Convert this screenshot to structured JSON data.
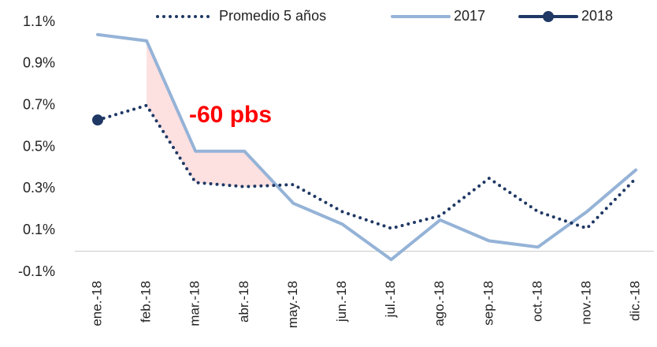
{
  "chart_data": {
    "type": "line",
    "categories": [
      "ene.-18",
      "feb.-18",
      "mar.-18",
      "abr.-18",
      "may.-18",
      "jun.-18",
      "jul.-18",
      "ago.-18",
      "sep.-18",
      "oct.-18",
      "nov.-18",
      "dic.-18"
    ],
    "series": [
      {
        "name": "Promedio 5 años",
        "color": "#1f3864",
        "style": "dotted",
        "values": [
          0.63,
          0.7,
          0.33,
          0.31,
          0.32,
          0.19,
          0.11,
          0.17,
          0.35,
          0.19,
          0.11,
          0.35
        ]
      },
      {
        "name": "2017",
        "color": "#95b3d7",
        "style": "solid",
        "values": [
          1.04,
          1.01,
          0.48,
          0.48,
          0.23,
          0.13,
          -0.04,
          0.15,
          0.05,
          0.02,
          0.19,
          0.39
        ]
      },
      {
        "name": "2018",
        "color": "#1f3864",
        "style": "marker",
        "values": [
          0.63,
          null,
          null,
          null,
          null,
          null,
          null,
          null,
          null,
          null,
          null,
          null
        ]
      }
    ],
    "annotation": "-60 pbs",
    "ylim": [
      -0.18,
      1.16
    ],
    "yticks": [
      {
        "value": -0.1,
        "label": "-0.1%"
      },
      {
        "value": 0.1,
        "label": "0.1%"
      },
      {
        "value": 0.3,
        "label": "0.3%"
      },
      {
        "value": 0.5,
        "label": "0.5%"
      },
      {
        "value": 0.7,
        "label": "0.7%"
      },
      {
        "value": 0.9,
        "label": "0.9%"
      },
      {
        "value": 1.1,
        "label": "1.1%"
      }
    ],
    "legend": "top"
  }
}
